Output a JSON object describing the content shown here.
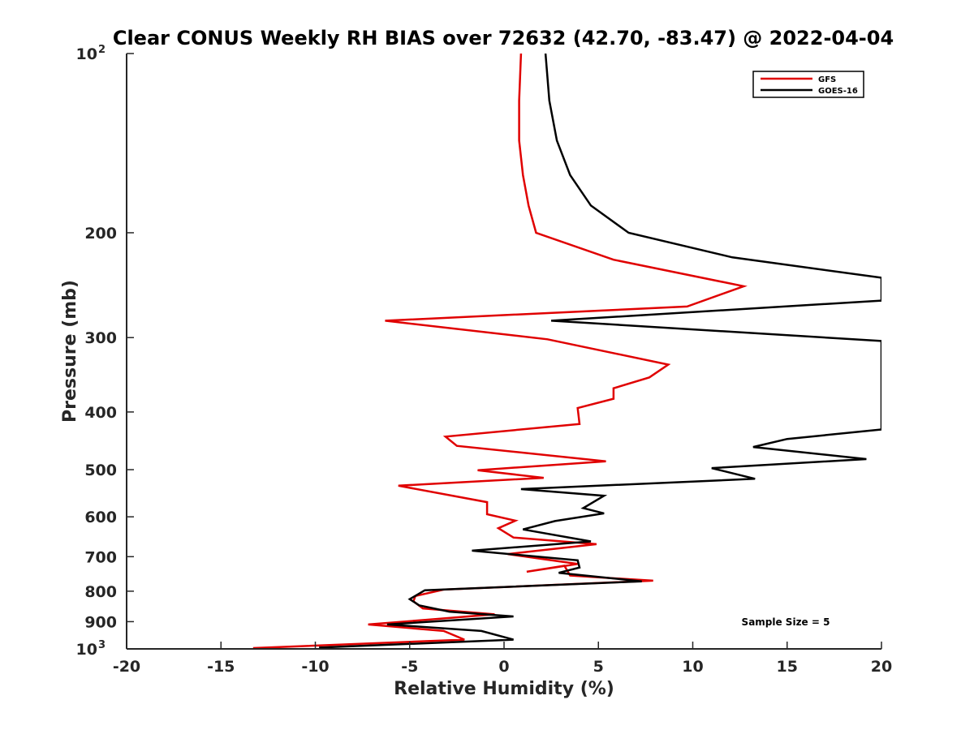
{
  "chart_data": {
    "type": "line",
    "title": "Clear CONUS Weekly RH BIAS over 72632 (42.70, -83.47) @ 2022-04-04",
    "xlabel": "Relative Humidity (%)",
    "ylabel": "Pressure (mb)",
    "xlim": [
      -20,
      20
    ],
    "ylim": [
      100,
      1000
    ],
    "yscale": "log",
    "y_reversed": true,
    "grid": false,
    "legend_position": "top-right",
    "xticks": [
      -20,
      -15,
      -10,
      -5,
      0,
      5,
      10,
      15,
      20
    ],
    "xtick_labels": [
      "-20",
      "-15",
      "-10",
      "-5",
      "0",
      "5",
      "10",
      "15",
      "20"
    ],
    "yticks": [
      100,
      200,
      300,
      400,
      500,
      600,
      700,
      800,
      900,
      1000
    ],
    "ytick_labels": [
      "10^2",
      "200",
      "300",
      "400",
      "500",
      "600",
      "700",
      "800",
      "900",
      "10^3"
    ],
    "annotation": "Sample Size = 5",
    "series": [
      {
        "name": "GFS",
        "color": "#e00000",
        "points": [
          [
            0.9,
            100
          ],
          [
            0.8,
            120
          ],
          [
            0.8,
            140
          ],
          [
            1.0,
            160
          ],
          [
            1.3,
            180
          ],
          [
            1.7,
            200
          ],
          [
            5.8,
            222
          ],
          [
            12.7,
            246
          ],
          [
            9.7,
            266
          ],
          [
            -6.3,
            281
          ],
          [
            2.3,
            302
          ],
          [
            8.7,
            333
          ],
          [
            7.7,
            350
          ],
          [
            5.8,
            365
          ],
          [
            5.8,
            380
          ],
          [
            3.9,
            394
          ],
          [
            4.0,
            419
          ],
          [
            -3.1,
            440
          ],
          [
            -2.5,
            456
          ],
          [
            5.4,
            484
          ],
          [
            -1.4,
            501
          ],
          [
            2.1,
            516
          ],
          [
            -5.6,
            532
          ],
          [
            -0.9,
            567
          ],
          [
            -0.9,
            594
          ],
          [
            0.6,
            609
          ],
          [
            -0.3,
            627
          ],
          [
            0.5,
            650
          ],
          [
            4.9,
            667
          ],
          [
            0.2,
            693
          ],
          [
            3.9,
            720
          ],
          [
            1.2,
            742
          ],
          [
            3.2,
            725
          ],
          [
            3.5,
            753
          ],
          [
            7.9,
            768
          ],
          [
            -3.2,
            795
          ],
          [
            -4.7,
            815
          ],
          [
            -4.8,
            832
          ],
          [
            -4.3,
            855
          ],
          [
            -0.5,
            875
          ],
          [
            -7.2,
            910
          ],
          [
            -3.2,
            933
          ],
          [
            -2.1,
            965
          ],
          [
            -13.3,
            997
          ]
        ]
      },
      {
        "name": "GOES-16",
        "color": "#000000",
        "points": [
          [
            2.2,
            100
          ],
          [
            2.4,
            120
          ],
          [
            2.8,
            140
          ],
          [
            3.5,
            160
          ],
          [
            4.6,
            180
          ],
          [
            6.6,
            200
          ],
          [
            12.1,
            220
          ],
          [
            20.0,
            238
          ],
          [
            20.0,
            260
          ],
          [
            2.5,
            281
          ],
          [
            20.0,
            304
          ],
          [
            20.0,
            428
          ],
          [
            15.0,
            444
          ],
          [
            13.2,
            458
          ],
          [
            19.2,
            480
          ],
          [
            11.0,
            497
          ],
          [
            13.3,
            518
          ],
          [
            0.9,
            539
          ],
          [
            5.3,
            553
          ],
          [
            4.2,
            580
          ],
          [
            5.3,
            592
          ],
          [
            2.7,
            610
          ],
          [
            1.0,
            630
          ],
          [
            4.6,
            660
          ],
          [
            -1.7,
            684
          ],
          [
            3.9,
            710
          ],
          [
            4.0,
            730
          ],
          [
            2.9,
            745
          ],
          [
            7.3,
            770
          ],
          [
            -4.2,
            797
          ],
          [
            -5.0,
            825
          ],
          [
            -4.5,
            845
          ],
          [
            -2.9,
            866
          ],
          [
            0.5,
            882
          ],
          [
            -6.2,
            910
          ],
          [
            -1.2,
            933
          ],
          [
            0.5,
            965
          ],
          [
            -9.8,
            995
          ]
        ]
      }
    ]
  }
}
